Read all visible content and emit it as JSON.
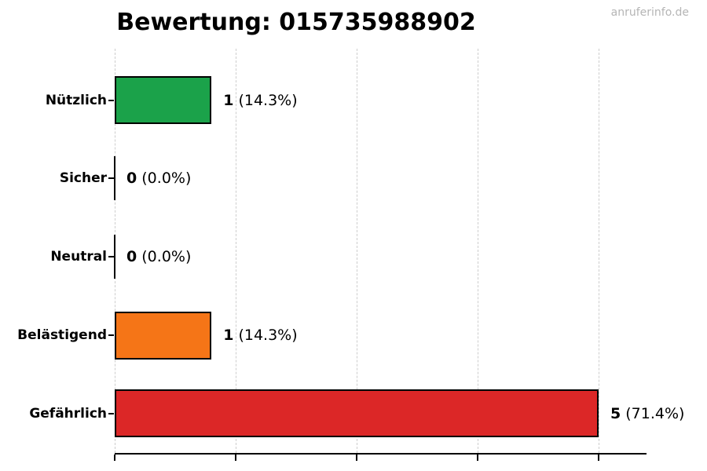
{
  "watermark": "anruferinfo.de",
  "colors": {
    "useful_green": "#1ba24a",
    "annoying_orange": "#f57517",
    "dangerous_red": "#dc2727",
    "bar_border": "#000000",
    "gridline": "#cdcdcd",
    "axis": "#000000",
    "watermark_gray": "#b5b5b5",
    "title_text": "#000000",
    "background": "#ffffff"
  },
  "chart_data": {
    "type": "bar",
    "orientation": "horizontal",
    "title": "Bewertung: 015735988902",
    "categories": [
      "Nützlich",
      "Sicher",
      "Neutral",
      "Belästigend",
      "Gefährlich"
    ],
    "values": [
      1,
      0,
      0,
      1,
      5
    ],
    "percentages": [
      14.3,
      0.0,
      0.0,
      14.3,
      71.4
    ],
    "value_labels": [
      "1 (14.3%)",
      "0 (0.0%)",
      "0 (0.0%)",
      "1 (14.3%)",
      "5 (71.4%)"
    ],
    "bar_colors": [
      "#1ba24a",
      null,
      null,
      "#f57517",
      "#dc2727"
    ],
    "xlim": [
      0,
      5.5
    ],
    "xticks": [
      0,
      1.25,
      2.5,
      3.75,
      5
    ],
    "xtick_labels": [
      "",
      "",
      "",
      "",
      ""
    ],
    "grid": "vertical-dashed",
    "legend": "none",
    "xlabel": "",
    "ylabel": ""
  }
}
